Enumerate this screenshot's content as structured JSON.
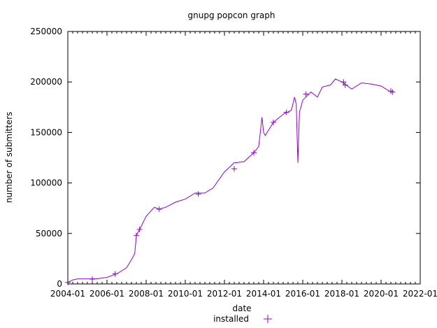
{
  "chart_data": {
    "type": "line",
    "title": "gnupg popcon graph",
    "xlabel": "date",
    "ylabel": "number of submitters",
    "x_range": [
      "2004-01",
      "2022-01"
    ],
    "x_ticks": [
      "2004-01",
      "2006-01",
      "2008-01",
      "2010-01",
      "2012-01",
      "2014-01",
      "2016-01",
      "2018-01",
      "2020-01",
      "2022-01"
    ],
    "ylim": [
      0,
      250000
    ],
    "y_ticks": [
      "0",
      "50000",
      "100000",
      "150000",
      "200000",
      "250000"
    ],
    "grid": false,
    "legend_position": "bottom-center",
    "series": [
      {
        "name": "installed",
        "color": "#9400d3",
        "marker": "+",
        "points": [
          [
            "2004-01",
            1500
          ],
          [
            "2004-04",
            4000
          ],
          [
            "2004-07",
            5000
          ],
          [
            "2005-01",
            5000
          ],
          [
            "2005-07",
            5200
          ],
          [
            "2006-01",
            6500
          ],
          [
            "2006-07",
            10000
          ],
          [
            "2007-01",
            16000
          ],
          [
            "2007-04",
            24000
          ],
          [
            "2007-06",
            30000
          ],
          [
            "2007-07",
            48000
          ],
          [
            "2007-09",
            54000
          ],
          [
            "2008-01",
            67000
          ],
          [
            "2008-06",
            76000
          ],
          [
            "2008-09",
            74000
          ],
          [
            "2009-01",
            76000
          ],
          [
            "2009-07",
            81000
          ],
          [
            "2010-01",
            84000
          ],
          [
            "2010-07",
            90000
          ],
          [
            "2011-01",
            90000
          ],
          [
            "2011-06",
            95000
          ],
          [
            "2012-01",
            111000
          ],
          [
            "2012-07",
            120000
          ],
          [
            "2013-01",
            121000
          ],
          [
            "2013-07",
            130000
          ],
          [
            "2013-10",
            136000
          ],
          [
            "2013-12",
            165000
          ],
          [
            "2014-01",
            150000
          ],
          [
            "2014-02",
            147000
          ],
          [
            "2014-07",
            160000
          ],
          [
            "2015-01",
            168000
          ],
          [
            "2015-06",
            172000
          ],
          [
            "2015-08",
            185000
          ],
          [
            "2015-09",
            178000
          ],
          [
            "2015-10",
            120000
          ],
          [
            "2015-11",
            170000
          ],
          [
            "2016-01",
            182000
          ],
          [
            "2016-06",
            190000
          ],
          [
            "2016-10",
            185000
          ],
          [
            "2017-01",
            195000
          ],
          [
            "2017-06",
            197000
          ],
          [
            "2017-09",
            203000
          ],
          [
            "2018-01",
            200000
          ],
          [
            "2018-07",
            193000
          ],
          [
            "2019-01",
            199000
          ],
          [
            "2019-07",
            198000
          ],
          [
            "2020-01",
            196000
          ],
          [
            "2020-06",
            191000
          ]
        ],
        "markers": [
          [
            "2004-01",
            1500
          ],
          [
            "2005-04",
            4800
          ],
          [
            "2006-06",
            10000
          ],
          [
            "2007-07",
            48000
          ],
          [
            "2007-09",
            54000
          ],
          [
            "2008-09",
            74000
          ],
          [
            "2010-09",
            89000
          ],
          [
            "2012-07",
            114000
          ],
          [
            "2013-07",
            130000
          ],
          [
            "2014-07",
            160000
          ],
          [
            "2015-03",
            170000
          ],
          [
            "2016-03",
            188000
          ],
          [
            "2018-02",
            200000
          ],
          [
            "2018-03",
            197000
          ],
          [
            "2020-07",
            191000
          ],
          [
            "2020-08",
            190000
          ]
        ]
      }
    ]
  }
}
